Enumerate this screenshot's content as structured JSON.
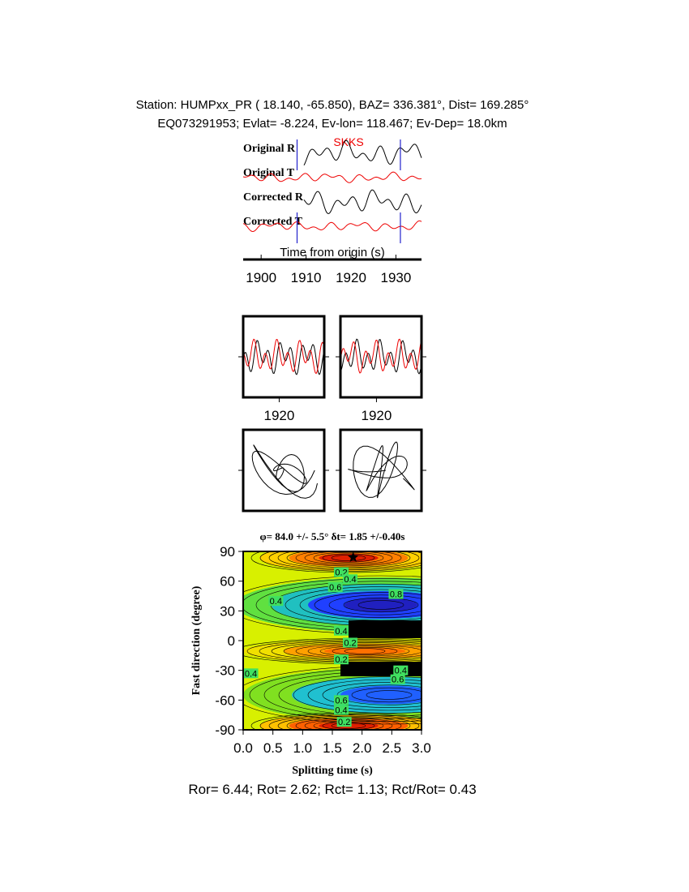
{
  "header": {
    "line1": "Station: HUMPxx_PR (  18.140,  -65.850), BAZ=  336.381°, Dist=  169.285°",
    "line2": "EQ073291953; Evlat=  -8.224, Ev-lon= 118.467; Ev-Dep= 18.0km"
  },
  "traces": {
    "labels": [
      "Original R",
      "Original T",
      "Corrected R",
      "Corrected T"
    ],
    "phase": "SKKS",
    "xlabel": "Time from origin (s)",
    "xlim": [
      1896,
      1935.7
    ],
    "xticks": [
      1900,
      1910,
      1920,
      1930
    ],
    "window": [
      1908,
      1931
    ]
  },
  "particle": {
    "xlim": [
      1912,
      1930
    ],
    "xticks": [
      1920
    ]
  },
  "contour": {
    "title": "φ= 84.0 +/- 5.5° δt= 1.85 +/-0.40s",
    "xlabel": "Splitting time (s)",
    "ylabel": "Fast direction (degree)",
    "xlim": [
      0,
      3
    ],
    "ylim": [
      -90,
      90
    ],
    "xticks": [
      {
        "value": 0,
        "label": "0.0"
      },
      0.5,
      {
        "value": 1,
        "label": "1.0"
      },
      1.5,
      {
        "value": 2,
        "label": "2.0"
      },
      2.5,
      {
        "value": 3,
        "label": "3.0"
      }
    ],
    "yticks": [
      90,
      60,
      30,
      0,
      -30,
      -60,
      -90
    ],
    "best": {
      "dt": 1.85,
      "phi": 84.0
    },
    "labels": [
      {
        "level": 0.2,
        "x": 1.65,
        "y": 69
      },
      {
        "level": 0.4,
        "x": 1.8,
        "y": 62
      },
      {
        "level": 0.6,
        "x": 1.55,
        "y": 54
      },
      {
        "level": 0.8,
        "x": 2.57,
        "y": 47
      },
      {
        "level": 0.4,
        "x": 0.55,
        "y": 40
      },
      {
        "level": 0.4,
        "x": 1.65,
        "y": 10
      },
      {
        "level": 0.2,
        "x": 1.8,
        "y": -2
      },
      {
        "level": 0.2,
        "x": 1.65,
        "y": -19
      },
      {
        "level": 0.4,
        "x": 0.13,
        "y": -33
      },
      {
        "level": 0.4,
        "x": 2.65,
        "y": -30
      },
      {
        "level": 0.6,
        "x": 2.6,
        "y": -39
      },
      {
        "level": 0.6,
        "x": 1.65,
        "y": -60
      },
      {
        "level": 0.4,
        "x": 1.65,
        "y": -70
      },
      {
        "level": 0.2,
        "x": 1.7,
        "y": -82
      }
    ]
  },
  "footer": "Ror= 6.44; Rot= 2.62; Rct= 1.13; Rct/Rot= 0.43"
}
